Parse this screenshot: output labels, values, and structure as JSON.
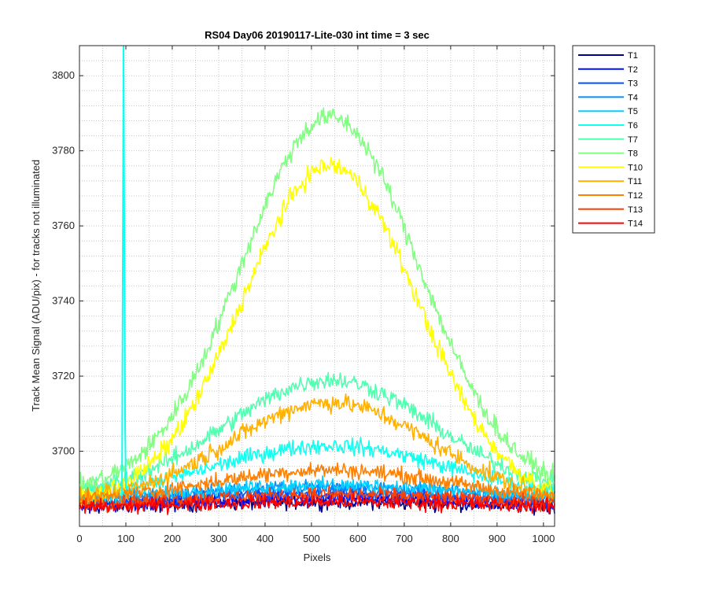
{
  "chart_data": {
    "type": "line",
    "title": "RS04 Day06 20190117-Lite-030 int time = 3 sec",
    "xlabel": "Pixels",
    "ylabel": "Track Mean Signal (ADU/pix) - for tracks not illuminated",
    "xlim": [
      0,
      1024
    ],
    "ylim": [
      3680,
      3808
    ],
    "xticks": [
      0,
      100,
      200,
      300,
      400,
      500,
      600,
      700,
      800,
      900,
      1000
    ],
    "yticks": [
      3700,
      3720,
      3740,
      3760,
      3780,
      3800
    ],
    "grid": true,
    "minor_grid": true,
    "legend_position": "outside-top-right",
    "series_model": "baseline + peak * exp(-((x - 540)/width)^2), with measurement noise; values are approximate readings",
    "spike": {
      "series": "T6",
      "x": 95,
      "y_from": 3688,
      "y_to": 3808
    },
    "series": [
      {
        "name": "T1",
        "color": "#00008F",
        "baseline": 3684.5,
        "peak": 2.0,
        "width": 520,
        "noise": 1.6
      },
      {
        "name": "T2",
        "color": "#0010FF",
        "baseline": 3684.5,
        "peak": 3.0,
        "width": 500,
        "noise": 1.6
      },
      {
        "name": "T3",
        "color": "#0050FF",
        "baseline": 3685.0,
        "peak": 4.0,
        "width": 480,
        "noise": 1.5
      },
      {
        "name": "T4",
        "color": "#0090FF",
        "baseline": 3686.0,
        "peak": 4.5,
        "width": 470,
        "noise": 1.5
      },
      {
        "name": "T5",
        "color": "#00CFFF",
        "baseline": 3686.0,
        "peak": 5.0,
        "width": 450,
        "noise": 1.6
      },
      {
        "name": "T6",
        "color": "#10FFEF",
        "baseline": 3687.0,
        "peak": 14.5,
        "width": 360,
        "noise": 1.8
      },
      {
        "name": "T7",
        "color": "#50FFAF",
        "baseline": 3688.0,
        "peak": 31.0,
        "width": 320,
        "noise": 2.0
      },
      {
        "name": "T8",
        "color": "#80FF80",
        "baseline": 3689.0,
        "peak": 100.0,
        "width": 270,
        "noise": 2.2
      },
      {
        "name": "T10",
        "color": "#FFFF00",
        "baseline": 3686.0,
        "peak": 90.0,
        "width": 265,
        "noise": 2.2
      },
      {
        "name": "T11",
        "color": "#FFB000",
        "baseline": 3686.0,
        "peak": 27.0,
        "width": 310,
        "noise": 2.0
      },
      {
        "name": "T12",
        "color": "#FF8000",
        "baseline": 3686.0,
        "peak": 9.0,
        "width": 380,
        "noise": 1.7
      },
      {
        "name": "T13",
        "color": "#FF4000",
        "baseline": 3685.0,
        "peak": 3.5,
        "width": 460,
        "noise": 1.6
      },
      {
        "name": "T14",
        "color": "#FF0000",
        "baseline": 3684.5,
        "peak": 2.0,
        "width": 500,
        "noise": 1.6
      }
    ]
  }
}
